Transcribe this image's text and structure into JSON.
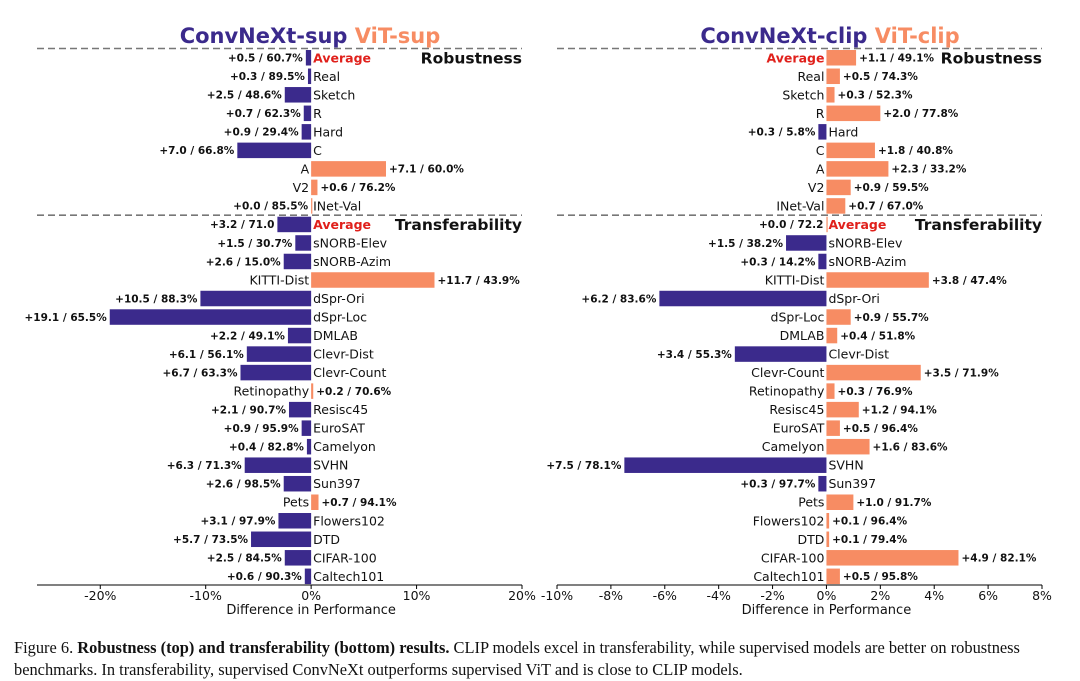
{
  "colors": {
    "negative": "#3b2a8c",
    "positive": "#f78c63",
    "average": "#e0201b",
    "text": "#111111",
    "axis": "#000000"
  },
  "chart_data": [
    {
      "type": "bar",
      "orientation": "horizontal",
      "title_parts": [
        "ConvNeXt-sup",
        "ViT-sup"
      ],
      "xlabel": "Difference in Performance",
      "xlim": [
        -0.26,
        0.2
      ],
      "xticks": [
        -0.2,
        -0.1,
        0.0,
        0.1,
        0.2
      ],
      "xtick_labels": [
        "-20%",
        "-10%",
        "0%",
        "10%",
        "20%"
      ],
      "groups": [
        {
          "name": "Robustness",
          "items": [
            {
              "label": "Average",
              "value": -0.005,
              "annotation": "+0.5 / 60.7%"
            },
            {
              "label": "Real",
              "value": -0.003,
              "annotation": "+0.3 / 89.5%"
            },
            {
              "label": "Sketch",
              "value": -0.025,
              "annotation": "+2.5 / 48.6%"
            },
            {
              "label": "R",
              "value": -0.007,
              "annotation": "+0.7 / 62.3%"
            },
            {
              "label": "Hard",
              "value": -0.009,
              "annotation": "+0.9 / 29.4%"
            },
            {
              "label": "C",
              "value": -0.07,
              "annotation": "+7.0 / 66.8%"
            },
            {
              "label": "A",
              "value": 0.071,
              "annotation": "+7.1 / 60.0%"
            },
            {
              "label": "V2",
              "value": 0.006,
              "annotation": "+0.6 / 76.2%"
            },
            {
              "label": "INet-Val",
              "value": 0.0,
              "annotation": "+0.0 / 85.5%"
            }
          ]
        },
        {
          "name": "Transferability",
          "items": [
            {
              "label": "Average",
              "value": -0.032,
              "annotation": "+3.2 / 71.0"
            },
            {
              "label": "sNORB-Elev",
              "value": -0.015,
              "annotation": "+1.5 / 30.7%"
            },
            {
              "label": "sNORB-Azim",
              "value": -0.026,
              "annotation": "+2.6 / 15.0%"
            },
            {
              "label": "KITTI-Dist",
              "value": 0.117,
              "annotation": "+11.7 / 43.9%"
            },
            {
              "label": "dSpr-Ori",
              "value": -0.105,
              "annotation": "+10.5 / 88.3%"
            },
            {
              "label": "dSpr-Loc",
              "value": -0.191,
              "annotation": "+19.1 / 65.5%"
            },
            {
              "label": "DMLAB",
              "value": -0.022,
              "annotation": "+2.2 / 49.1%"
            },
            {
              "label": "Clevr-Dist",
              "value": -0.061,
              "annotation": "+6.1 / 56.1%"
            },
            {
              "label": "Clevr-Count",
              "value": -0.067,
              "annotation": "+6.7 / 63.3%"
            },
            {
              "label": "Retinopathy",
              "value": 0.002,
              "annotation": "+0.2 / 70.6%"
            },
            {
              "label": "Resisc45",
              "value": -0.021,
              "annotation": "+2.1 / 90.7%"
            },
            {
              "label": "EuroSAT",
              "value": -0.009,
              "annotation": "+0.9 / 95.9%"
            },
            {
              "label": "Camelyon",
              "value": -0.004,
              "annotation": "+0.4 / 82.8%"
            },
            {
              "label": "SVHN",
              "value": -0.063,
              "annotation": "+6.3 / 71.3%"
            },
            {
              "label": "Sun397",
              "value": -0.026,
              "annotation": "+2.6 / 98.5%"
            },
            {
              "label": "Pets",
              "value": 0.007,
              "annotation": "+0.7 / 94.1%"
            },
            {
              "label": "Flowers102",
              "value": -0.031,
              "annotation": "+3.1 / 97.9%"
            },
            {
              "label": "DTD",
              "value": -0.057,
              "annotation": "+5.7 / 73.5%"
            },
            {
              "label": "CIFAR-100",
              "value": -0.025,
              "annotation": "+2.5 / 84.5%"
            },
            {
              "label": "Caltech101",
              "value": -0.006,
              "annotation": "+0.6 / 90.3%"
            }
          ]
        }
      ]
    },
    {
      "type": "bar",
      "orientation": "horizontal",
      "title_parts": [
        "ConvNeXt-clip",
        "ViT-clip"
      ],
      "xlabel": "Difference in Performance",
      "xlim": [
        -0.1,
        0.08
      ],
      "xticks": [
        -0.1,
        -0.08,
        -0.06,
        -0.04,
        -0.02,
        0.0,
        0.02,
        0.04,
        0.06,
        0.08
      ],
      "xtick_labels": [
        "-10%",
        "-8%",
        "-6%",
        "-4%",
        "-2%",
        "0%",
        "2%",
        "4%",
        "6%",
        "8%"
      ],
      "groups": [
        {
          "name": "Robustness",
          "items": [
            {
              "label": "Average",
              "value": 0.011,
              "annotation": "+1.1 / 49.1%"
            },
            {
              "label": "Real",
              "value": 0.005,
              "annotation": "+0.5 / 74.3%"
            },
            {
              "label": "Sketch",
              "value": 0.003,
              "annotation": "+0.3 / 52.3%"
            },
            {
              "label": "R",
              "value": 0.02,
              "annotation": "+2.0 / 77.8%"
            },
            {
              "label": "Hard",
              "value": -0.003,
              "annotation": "+0.3 / 5.8%"
            },
            {
              "label": "C",
              "value": 0.018,
              "annotation": "+1.8 / 40.8%"
            },
            {
              "label": "A",
              "value": 0.023,
              "annotation": "+2.3 / 33.2%"
            },
            {
              "label": "V2",
              "value": 0.009,
              "annotation": "+0.9 / 59.5%"
            },
            {
              "label": "INet-Val",
              "value": 0.007,
              "annotation": "+0.7 / 67.0%"
            }
          ]
        },
        {
          "name": "Transferability",
          "items": [
            {
              "label": "Average",
              "value": 0.0,
              "annotation": "+0.0 / 72.2"
            },
            {
              "label": "sNORB-Elev",
              "value": -0.015,
              "annotation": "+1.5 / 38.2%"
            },
            {
              "label": "sNORB-Azim",
              "value": -0.003,
              "annotation": "+0.3 / 14.2%"
            },
            {
              "label": "KITTI-Dist",
              "value": 0.038,
              "annotation": "+3.8 / 47.4%"
            },
            {
              "label": "dSpr-Ori",
              "value": -0.062,
              "annotation": "+6.2 / 83.6%"
            },
            {
              "label": "dSpr-Loc",
              "value": 0.009,
              "annotation": "+0.9 / 55.7%"
            },
            {
              "label": "DMLAB",
              "value": 0.004,
              "annotation": "+0.4 / 51.8%"
            },
            {
              "label": "Clevr-Dist",
              "value": -0.034,
              "annotation": "+3.4 / 55.3%"
            },
            {
              "label": "Clevr-Count",
              "value": 0.035,
              "annotation": "+3.5 / 71.9%"
            },
            {
              "label": "Retinopathy",
              "value": 0.003,
              "annotation": "+0.3 / 76.9%"
            },
            {
              "label": "Resisc45",
              "value": 0.012,
              "annotation": "+1.2 / 94.1%"
            },
            {
              "label": "EuroSAT",
              "value": 0.005,
              "annotation": "+0.5 / 96.4%"
            },
            {
              "label": "Camelyon",
              "value": 0.016,
              "annotation": "+1.6 / 83.6%"
            },
            {
              "label": "SVHN",
              "value": -0.075,
              "annotation": "+7.5 / 78.1%"
            },
            {
              "label": "Sun397",
              "value": -0.003,
              "annotation": "+0.3 / 97.7%"
            },
            {
              "label": "Pets",
              "value": 0.01,
              "annotation": "+1.0 / 91.7%"
            },
            {
              "label": "Flowers102",
              "value": 0.001,
              "annotation": "+0.1 / 96.4%"
            },
            {
              "label": "DTD",
              "value": 0.001,
              "annotation": "+0.1 / 79.4%"
            },
            {
              "label": "CIFAR-100",
              "value": 0.049,
              "annotation": "+4.9 / 82.1%"
            },
            {
              "label": "Caltech101",
              "value": 0.005,
              "annotation": "+0.5 / 95.8%"
            }
          ]
        }
      ]
    }
  ],
  "caption": {
    "prefix": "Figure 6. ",
    "bold": "Robustness (top) and transferability (bottom) results.",
    "body": " CLIP models excel in transferability, while supervised models are better on robustness benchmarks. In transferability, supervised ConvNeXt outperforms supervised ViT and is close to CLIP models."
  }
}
